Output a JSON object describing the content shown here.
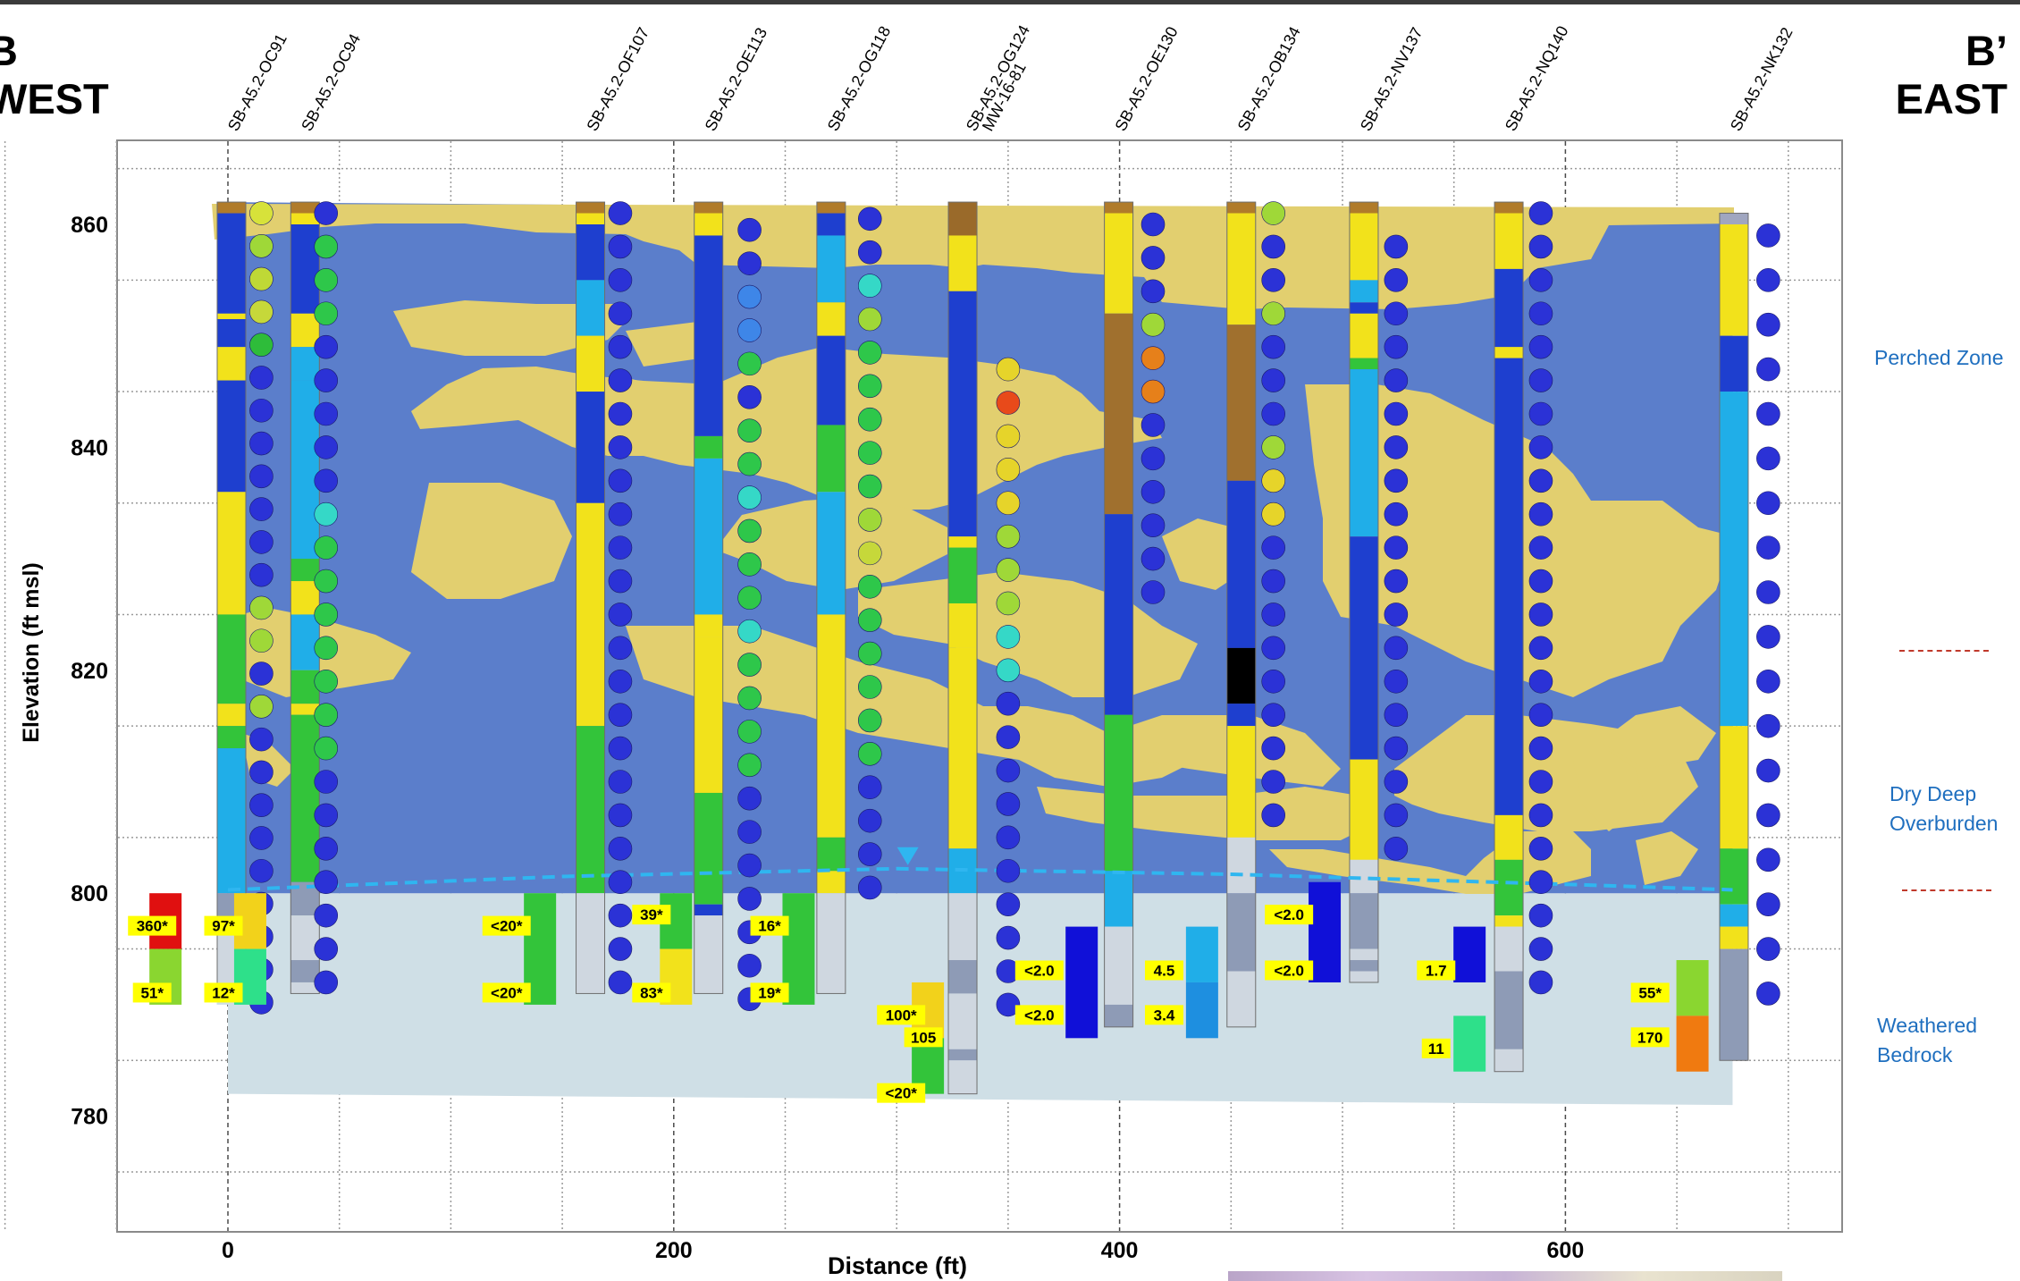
{
  "section": {
    "left_title": "B",
    "left_subtitle": "WEST",
    "right_title": "B’",
    "right_subtitle": "EAST"
  },
  "zones": [
    {
      "label": "Perched Zone",
      "id": "perched"
    },
    {
      "label": "Dry Deep Overburden",
      "id": "dry"
    },
    {
      "label": "Weathered Bedrock",
      "id": "bedrock"
    }
  ],
  "colors": {
    "clay": "#5b7ecb",
    "sand": "#e2cf6f",
    "bedrock": "#cfdfe6",
    "water_table": "#2fb6f0",
    "zone_text": "#1f6fbf",
    "divider": "#c0392b"
  },
  "chart_data": {
    "type": "cross-section",
    "xlabel": "Distance (ft)",
    "ylabel": "Elevation (ft msl)",
    "xlim": [
      -125,
      1815
    ],
    "ylim": [
      770,
      870
    ],
    "xticks": [
      0,
      200,
      400,
      600
    ],
    "yticks": [
      780,
      800,
      820,
      840,
      860
    ],
    "boreholes": [
      {
        "name": "SB-A5.2-OC91",
        "x": 0
      },
      {
        "name": "SB-A5.2-OC94",
        "x": 33
      },
      {
        "name": "SB-A5.2-OF107",
        "x": 161
      },
      {
        "name": "SB-A5.2-OE113",
        "x": 214
      },
      {
        "name": "SB-A5.2-OG118",
        "x": 269
      },
      {
        "name": "SB-A5.2-OG124",
        "x": 328,
        "alt": "MW-16-81"
      },
      {
        "name": "SB-A5.2-OE130",
        "x": 398
      },
      {
        "name": "SB-A5.2-OB134",
        "x": 453
      },
      {
        "name": "SB-A5.2-NV137",
        "x": 508
      },
      {
        "name": "SB-A5.2-NQ140",
        "x": 573
      },
      {
        "name": "SB-A5.2-NK132",
        "x": 674
      }
    ],
    "sample_labels": [
      {
        "text": "360*",
        "x": -34,
        "y": 797
      },
      {
        "text": "51*",
        "x": -34,
        "y": 791
      },
      {
        "text": "97*",
        "x": -2,
        "y": 797
      },
      {
        "text": "12*",
        "x": -2,
        "y": 791
      },
      {
        "text": "<20*",
        "x": 125,
        "y": 797
      },
      {
        "text": "<20*",
        "x": 125,
        "y": 791
      },
      {
        "text": "39*",
        "x": 190,
        "y": 798
      },
      {
        "text": "83*",
        "x": 190,
        "y": 791
      },
      {
        "text": "16*",
        "x": 243,
        "y": 797
      },
      {
        "text": "19*",
        "x": 243,
        "y": 791
      },
      {
        "text": "100*",
        "x": 302,
        "y": 789
      },
      {
        "text": "105",
        "x": 312,
        "y": 787
      },
      {
        "text": "<20*",
        "x": 302,
        "y": 782
      },
      {
        "text": "<2.0",
        "x": 364,
        "y": 793
      },
      {
        "text": "<2.0",
        "x": 364,
        "y": 789
      },
      {
        "text": "4.5",
        "x": 420,
        "y": 793
      },
      {
        "text": "3.4",
        "x": 420,
        "y": 789
      },
      {
        "text": "<2.0",
        "x": 476,
        "y": 798
      },
      {
        "text": "<2.0",
        "x": 476,
        "y": 793
      },
      {
        "text": "1.7",
        "x": 542,
        "y": 793
      },
      {
        "text": "11",
        "x": 542,
        "y": 786
      },
      {
        "text": "55*",
        "x": 638,
        "y": 791
      },
      {
        "text": "170",
        "x": 638,
        "y": 787
      }
    ],
    "water_table": [
      [
        0,
        800.3
      ],
      [
        150,
        801.5
      ],
      [
        300,
        802.2
      ],
      [
        450,
        801.7
      ],
      [
        600,
        800.8
      ],
      [
        675,
        800.3
      ]
    ]
  }
}
